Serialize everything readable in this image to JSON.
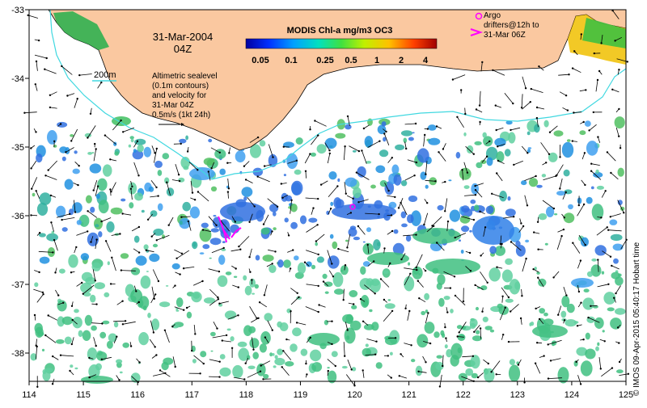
{
  "map": {
    "date": "31-Mar-2004",
    "time": "04Z",
    "lon_ticks": [
      "114",
      "115",
      "116",
      "117",
      "118",
      "119",
      "120",
      "121",
      "122",
      "123",
      "124",
      "125"
    ],
    "lat_ticks": [
      "-33",
      "-34",
      "-35",
      "-36",
      "-37",
      "-38"
    ],
    "colorbar": {
      "title": "MODIS Chl-a mg/m3 OC3",
      "labels": [
        "0.05",
        "0.1",
        "0.25",
        "0.5",
        "1",
        "2",
        "4"
      ]
    },
    "legend": {
      "isobath_label": "200m",
      "sealevel_lines": [
        "Altimetric sealevel",
        "(0.1m contours)",
        "and velocity for",
        "31-Mar 04Z",
        "0.5m/s (1kt 24h)"
      ],
      "argo_lines": [
        "Argo",
        "drifters@12h to",
        "31-Mar 06Z"
      ]
    },
    "credit": "© IMOS 09-Apr-2015 05:40:17 Hobart time",
    "colors": {
      "land": "#fac8a0",
      "coast": "#000000",
      "isobath": "#40d8e0",
      "argo": "#ff00ff",
      "arrow": "#000000"
    }
  }
}
